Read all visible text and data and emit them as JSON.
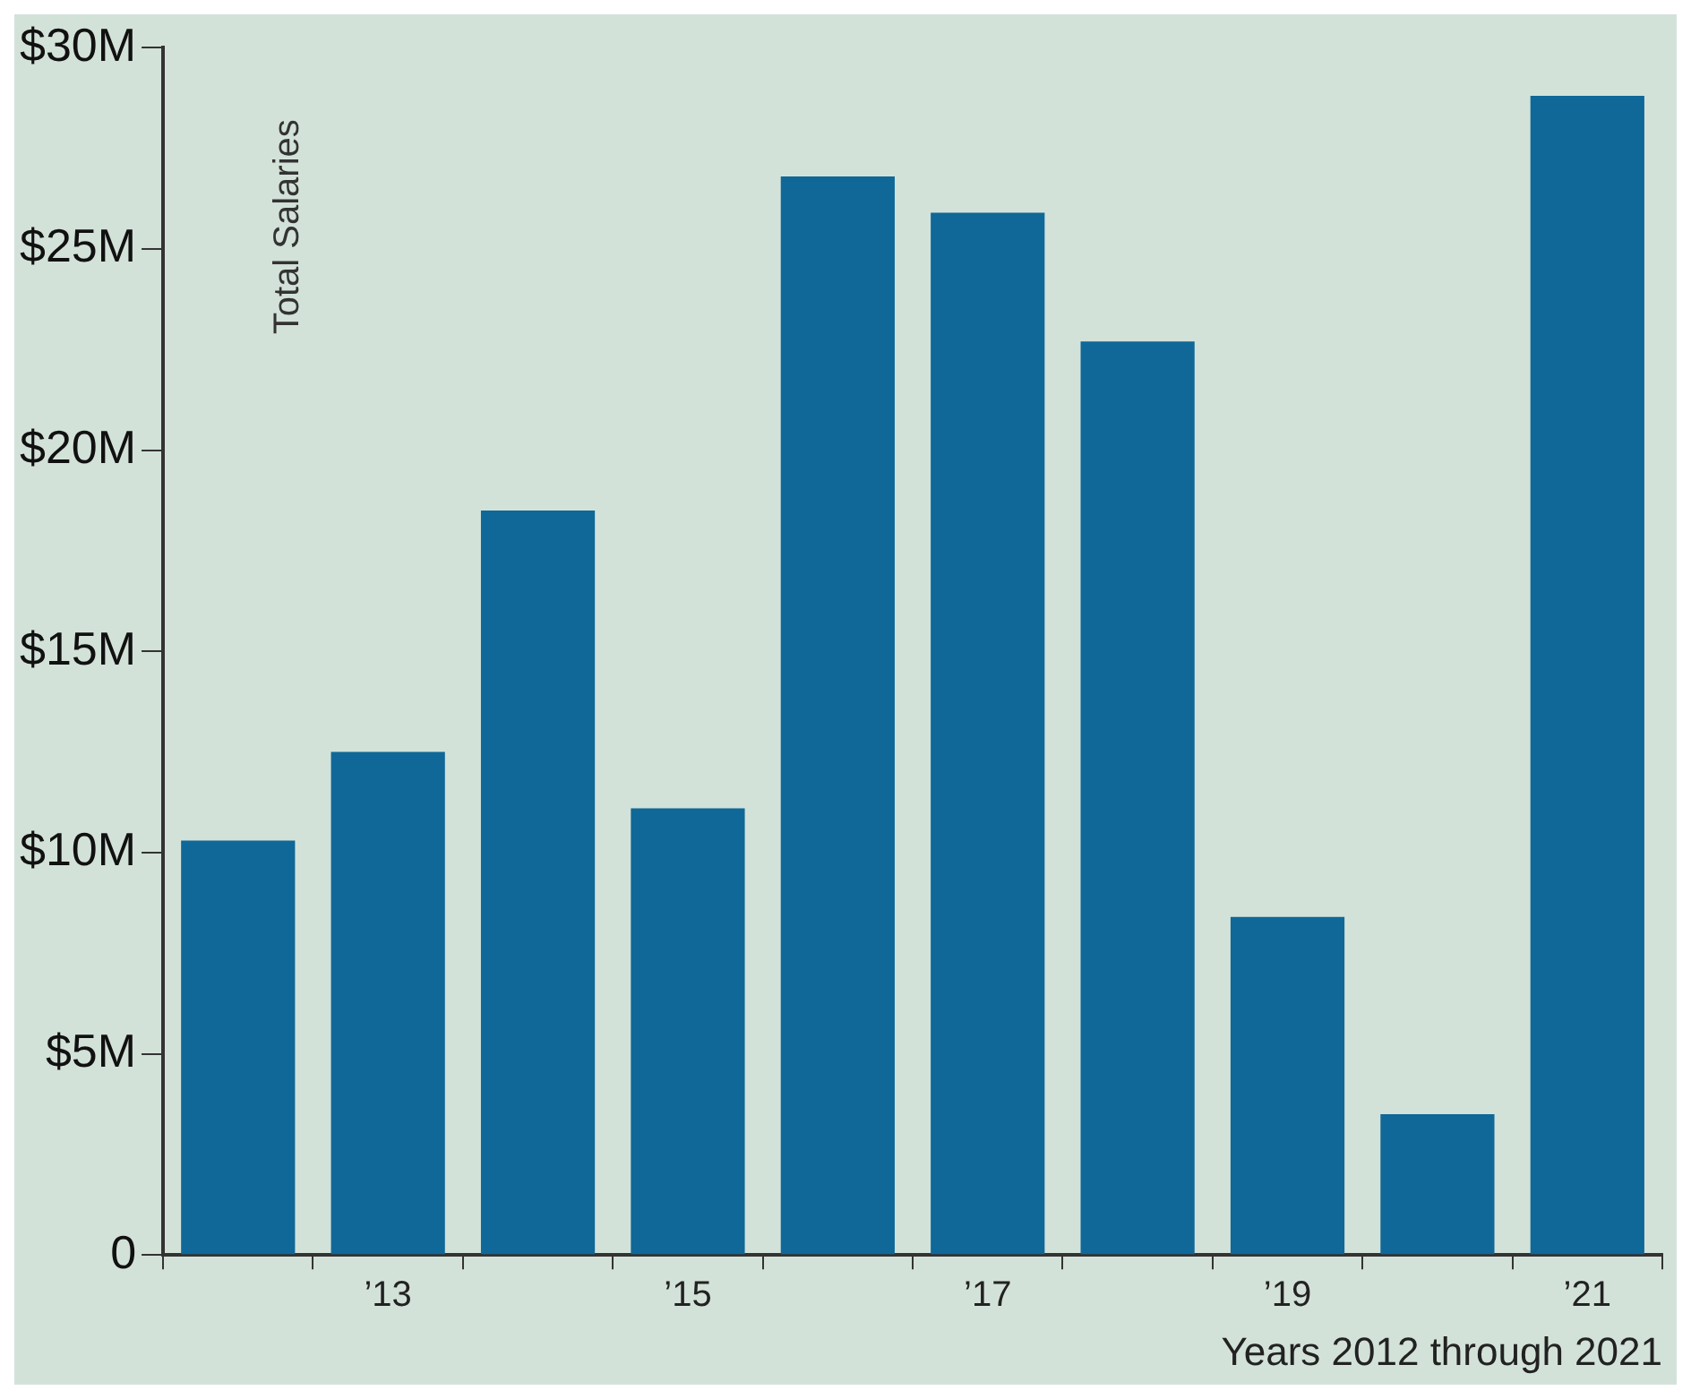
{
  "chart_data": {
    "type": "bar",
    "ylabel": "Total Salaries",
    "xlabel": "Years 2012 through 2021",
    "categories": [
      null,
      "’13",
      null,
      "’15",
      null,
      "’17",
      null,
      "’19",
      null,
      "’21"
    ],
    "values": [
      10.3,
      12.5,
      18.5,
      11.1,
      26.8,
      25.9,
      22.7,
      8.4,
      3.5,
      28.8
    ],
    "color": "#0f6898",
    "ylim": [
      0,
      30
    ],
    "yticks": [
      {
        "value": 0,
        "label": "0"
      },
      {
        "value": 5,
        "label": "$5M"
      },
      {
        "value": 10,
        "label": "$10M"
      },
      {
        "value": 15,
        "label": "$15M"
      },
      {
        "value": 20,
        "label": "$20M"
      },
      {
        "value": 25,
        "label": "$25M"
      },
      {
        "value": 30,
        "label": "$30M"
      }
    ],
    "grid": false,
    "legend": false
  }
}
